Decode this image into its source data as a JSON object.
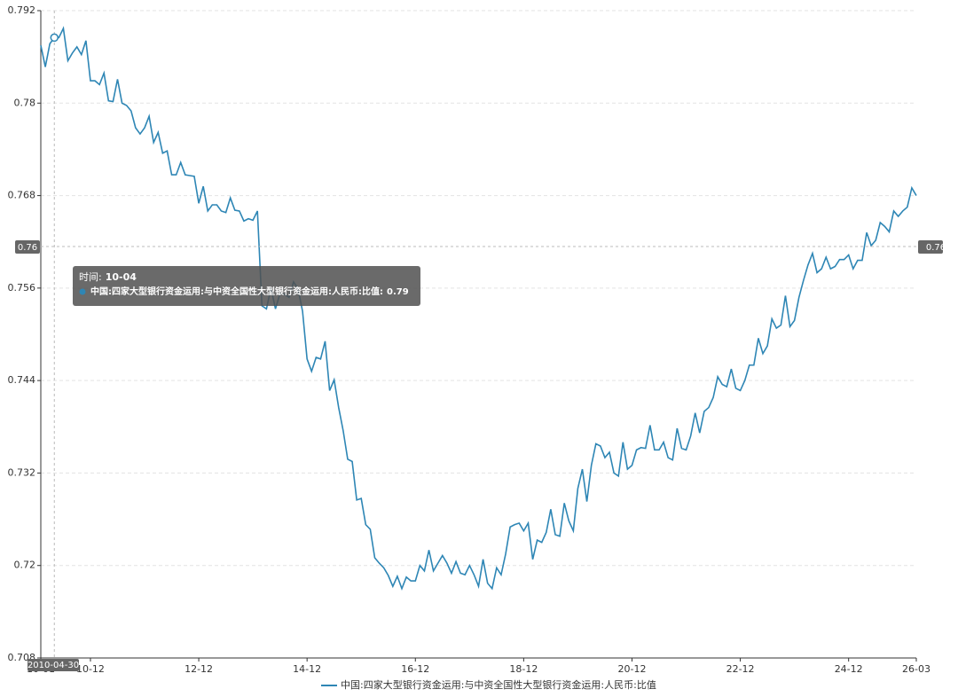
{
  "chart_data": {
    "type": "line",
    "categories": [
      "10-01",
      null,
      null,
      null,
      null,
      null,
      null,
      null,
      null,
      null,
      null,
      "10-12",
      null,
      null,
      null,
      null,
      null,
      null,
      null,
      null,
      null,
      null,
      null,
      null,
      null,
      null,
      null,
      null,
      null,
      null,
      null,
      null,
      null,
      null,
      null,
      "12-12",
      null,
      null,
      null,
      null,
      null,
      null,
      null,
      null,
      null,
      null,
      null,
      null,
      null,
      null,
      null,
      null,
      null,
      null,
      null,
      null,
      null,
      null,
      null,
      "14-12",
      null,
      null,
      null,
      null,
      null,
      null,
      null,
      null,
      null,
      null,
      null,
      null,
      null,
      null,
      null,
      null,
      null,
      null,
      null,
      null,
      null,
      null,
      null,
      "16-12",
      null,
      null,
      null,
      null,
      null,
      null,
      null,
      null,
      null,
      null,
      null,
      null,
      null,
      null,
      null,
      null,
      null,
      null,
      null,
      null,
      null,
      null,
      null,
      "18-12",
      null,
      null,
      null,
      null,
      null,
      null,
      null,
      null,
      null,
      null,
      null,
      null,
      null,
      null,
      null,
      null,
      null,
      null,
      null,
      null,
      null,
      null,
      null,
      "20-12",
      null,
      null,
      null,
      null,
      null,
      null,
      null,
      null,
      null,
      null,
      null,
      null,
      null,
      null,
      null,
      null,
      null,
      null,
      null,
      null,
      null,
      null,
      null,
      "22-12",
      null,
      null,
      null,
      null,
      null,
      null,
      null,
      null,
      null,
      null,
      null,
      null,
      null,
      null,
      null,
      null,
      null,
      null,
      null,
      null,
      null,
      null,
      null,
      "24-12",
      null,
      null,
      null,
      null,
      null,
      null,
      null,
      null,
      null,
      null,
      null,
      null,
      null,
      null,
      "26-03"
    ],
    "series": [
      {
        "name": "中国:四家大型银行资金运用:与中资全国性大型银行资金运用:人民币:比值",
        "color": "#2e86b5",
        "values": [
          0.7875,
          0.7847,
          0.7877,
          0.7885,
          0.7885,
          0.7897,
          0.7855,
          0.7865,
          0.7873,
          0.7863,
          0.7881,
          0.7829,
          0.7829,
          0.7824,
          0.7839,
          0.7803,
          0.7802,
          0.7831,
          0.78,
          0.7797,
          0.779,
          0.7768,
          0.776,
          0.7768,
          0.7783,
          0.7749,
          0.7762,
          0.7735,
          0.7738,
          0.7707,
          0.7707,
          0.7723,
          0.7707,
          0.7706,
          0.7705,
          0.767,
          0.7692,
          0.766,
          0.7668,
          0.7668,
          0.766,
          0.7658,
          0.7677,
          0.7661,
          0.766,
          0.7647,
          0.765,
          0.7648,
          0.766,
          0.7537,
          0.7533,
          0.756,
          0.7533,
          0.7553,
          0.7552,
          0.7548,
          0.7568,
          0.7559,
          0.753,
          0.7468,
          0.7452,
          0.747,
          0.7468,
          0.7491,
          0.7427,
          0.7441,
          0.7405,
          0.7375,
          0.7338,
          0.7335,
          0.7285,
          0.7287,
          0.7253,
          0.7247,
          0.721,
          0.7203,
          0.7197,
          0.7187,
          0.7173,
          0.7186,
          0.717,
          0.7185,
          0.718,
          0.718,
          0.72,
          0.7193,
          0.722,
          0.7193,
          0.7203,
          0.7213,
          0.7203,
          0.719,
          0.7205,
          0.719,
          0.7188,
          0.72,
          0.7188,
          0.7173,
          0.7208,
          0.7177,
          0.717,
          0.7197,
          0.7188,
          0.7215,
          0.725,
          0.7253,
          0.7255,
          0.7245,
          0.7255,
          0.7208,
          0.7233,
          0.723,
          0.7243,
          0.7273,
          0.724,
          0.7238,
          0.7281,
          0.7258,
          0.7245,
          0.73,
          0.7325,
          0.7283,
          0.733,
          0.7358,
          0.7355,
          0.734,
          0.7347,
          0.732,
          0.7316,
          0.736,
          0.7325,
          0.733,
          0.735,
          0.7353,
          0.7352,
          0.7382,
          0.735,
          0.735,
          0.736,
          0.734,
          0.7337,
          0.7378,
          0.7352,
          0.735,
          0.7368,
          0.7398,
          0.7372,
          0.74,
          0.7405,
          0.7418,
          0.7445,
          0.7435,
          0.7432,
          0.7455,
          0.743,
          0.7427,
          0.744,
          0.746,
          0.746,
          0.7495,
          0.7475,
          0.7485,
          0.752,
          0.7508,
          0.7512,
          0.755,
          0.751,
          0.7518,
          0.7548,
          0.757,
          0.759,
          0.7605,
          0.758,
          0.7585,
          0.76,
          0.7585,
          0.7588,
          0.7597,
          0.7597,
          0.7603,
          0.7585,
          0.7596,
          0.7596,
          0.7632,
          0.7615,
          0.7622,
          0.7645,
          0.764,
          0.7633,
          0.766,
          0.7653,
          0.766,
          0.7665,
          0.769,
          0.768
        ]
      }
    ],
    "ylim": [
      0.708,
      0.792
    ],
    "yticks": [
      0.708,
      0.72,
      0.732,
      0.744,
      0.756,
      0.768,
      0.78,
      0.792
    ],
    "grid": true,
    "legend": "bottom",
    "pointer": {
      "x_label": "2010-04-30",
      "y_label": 0.76
    },
    "tooltip": {
      "time_label": "时间:",
      "time": "10-04",
      "series_label": "中国:四家大型银行资金运用:与中资全国性大型银行资金运用:人民币:比值:",
      "value": 0.79
    }
  }
}
